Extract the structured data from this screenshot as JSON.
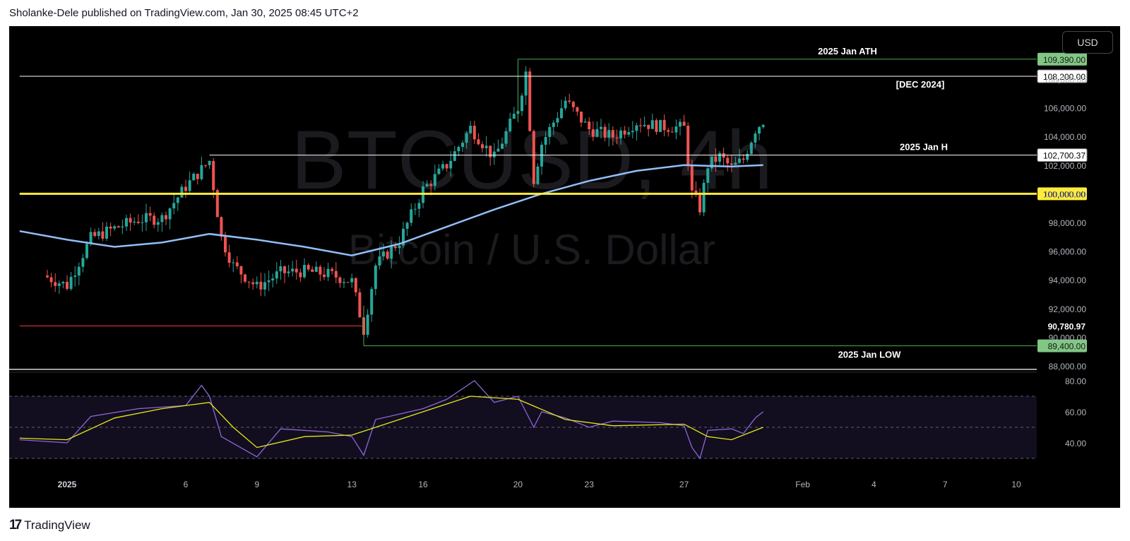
{
  "header": {
    "published": "Sholanke-Dele published on TradingView.com, Jan 30, 2025 08:45 UTC+2"
  },
  "footer": {
    "brand": "TradingView"
  },
  "toolbar": {
    "currency": "USD"
  },
  "watermark": {
    "symbol": "BTCUSD, 4h",
    "name": "Bitcoin / U.S. Dollar"
  },
  "chart_data": {
    "type": "candlestick",
    "symbol": "BTCUSD",
    "interval": "4h",
    "price_axis": {
      "ylim": [
        87400,
        110700
      ],
      "ticks": [
        "88,000.00",
        "90,000.00",
        "92,000.00",
        "94,000.00",
        "96,000.00",
        "98,000.00",
        "100,000.00",
        "102,000.00",
        "104,000.00",
        "106,000.00",
        "108,000.00"
      ]
    },
    "time_axis": {
      "ticks": [
        {
          "label": "2025",
          "date": "2025-01-01"
        },
        {
          "label": "6",
          "date": "2025-01-06"
        },
        {
          "label": "9",
          "date": "2025-01-09"
        },
        {
          "label": "13",
          "date": "2025-01-13"
        },
        {
          "label": "16",
          "date": "2025-01-16"
        },
        {
          "label": "20",
          "date": "2025-01-20"
        },
        {
          "label": "23",
          "date": "2025-01-23"
        },
        {
          "label": "27",
          "date": "2025-01-27"
        },
        {
          "label": "Feb",
          "date": "2025-02-01"
        },
        {
          "label": "4",
          "date": "2025-02-04"
        },
        {
          "label": "7",
          "date": "2025-02-07"
        },
        {
          "label": "10",
          "date": "2025-02-10"
        }
      ]
    },
    "colors": {
      "up": "#26a69a",
      "down": "#ef5350",
      "ma": "#90bff9",
      "yellow": "#ffeb3b",
      "green": "#4caf50",
      "red": "#f23645",
      "white": "#ffffff",
      "rsi": "#8e67d8",
      "rsi_ma": "#e6e619"
    },
    "price_series": [
      {
        "date": "2024-12-31",
        "price": 94300
      },
      {
        "date": "2025-01-01",
        "price": 93600
      },
      {
        "date": "2025-01-02",
        "price": 96900
      },
      {
        "date": "2025-01-03",
        "price": 97600
      },
      {
        "date": "2025-01-04",
        "price": 98200
      },
      {
        "date": "2025-01-05",
        "price": 98300
      },
      {
        "date": "2025-01-06",
        "price": 100500
      },
      {
        "date": "2025-01-07",
        "price": 102300
      },
      {
        "date": "2025-01-07T12:00",
        "price": 96900
      },
      {
        "date": "2025-01-08",
        "price": 95000
      },
      {
        "date": "2025-01-09",
        "price": 93500
      },
      {
        "date": "2025-01-10",
        "price": 94500
      },
      {
        "date": "2025-01-11",
        "price": 94600
      },
      {
        "date": "2025-01-12",
        "price": 94400
      },
      {
        "date": "2025-01-13",
        "price": 93900
      },
      {
        "date": "2025-01-13T12:00",
        "price": 90500
      },
      {
        "date": "2025-01-14",
        "price": 95000
      },
      {
        "date": "2025-01-15",
        "price": 96700
      },
      {
        "date": "2025-01-16",
        "price": 100300
      },
      {
        "date": "2025-01-17",
        "price": 102000
      },
      {
        "date": "2025-01-18",
        "price": 104600
      },
      {
        "date": "2025-01-19",
        "price": 102500
      },
      {
        "date": "2025-01-20",
        "price": 106000
      },
      {
        "date": "2025-01-20T08:00",
        "price": 108500
      },
      {
        "date": "2025-01-20T16:00",
        "price": 101000
      },
      {
        "date": "2025-01-21",
        "price": 103500
      },
      {
        "date": "2025-01-22",
        "price": 106500
      },
      {
        "date": "2025-01-23",
        "price": 104500
      },
      {
        "date": "2025-01-24",
        "price": 104000
      },
      {
        "date": "2025-01-25",
        "price": 105000
      },
      {
        "date": "2025-01-26",
        "price": 104700
      },
      {
        "date": "2025-01-27",
        "price": 104600
      },
      {
        "date": "2025-01-27T08:00",
        "price": 100000
      },
      {
        "date": "2025-01-27T16:00",
        "price": 99000
      },
      {
        "date": "2025-01-28",
        "price": 102000
      },
      {
        "date": "2025-01-28T12:00",
        "price": 102600
      },
      {
        "date": "2025-01-29",
        "price": 101800
      },
      {
        "date": "2025-01-29T12:00",
        "price": 102400
      },
      {
        "date": "2025-01-30",
        "price": 104500
      },
      {
        "date": "2025-01-30T08:00",
        "price": 105100
      }
    ],
    "moving_average": [
      {
        "date": "2024-12-30",
        "price": 97400
      },
      {
        "date": "2025-01-01",
        "price": 96800
      },
      {
        "date": "2025-01-03",
        "price": 96300
      },
      {
        "date": "2025-01-05",
        "price": 96600
      },
      {
        "date": "2025-01-07",
        "price": 97200
      },
      {
        "date": "2025-01-09",
        "price": 96800
      },
      {
        "date": "2025-01-11",
        "price": 96300
      },
      {
        "date": "2025-01-13",
        "price": 95700
      },
      {
        "date": "2025-01-15",
        "price": 96500
      },
      {
        "date": "2025-01-17",
        "price": 97700
      },
      {
        "date": "2025-01-19",
        "price": 98900
      },
      {
        "date": "2025-01-21",
        "price": 100000
      },
      {
        "date": "2025-01-23",
        "price": 100900
      },
      {
        "date": "2025-01-25",
        "price": 101600
      },
      {
        "date": "2025-01-27",
        "price": 102000
      },
      {
        "date": "2025-01-29",
        "price": 101900
      },
      {
        "date": "2025-01-30T08:00",
        "price": 102000
      }
    ],
    "levels": [
      {
        "label": "2025 Jan ATH",
        "price": 109390,
        "value_label": "109,390.00",
        "color": "green",
        "start_date": "2025-01-20"
      },
      {
        "label": "[DEC 2024]",
        "price": 108200,
        "value_label": "108,200.00",
        "color": "white",
        "start_date": "2024-12-30"
      },
      {
        "label": "2025 Jan H",
        "price": 102700.37,
        "value_label": "102,700.37",
        "color": "white",
        "start_date": "2025-01-07"
      },
      {
        "label": "",
        "price": 100000,
        "value_label": "100,000.00",
        "color": "yellow",
        "start_date": "2024-12-30"
      },
      {
        "label": "",
        "price": 90780.97,
        "value_label": "90,780.97",
        "color": "red",
        "start_date": "2024-12-30",
        "end_date": "2025-01-13T12:00"
      },
      {
        "label": "2025 Jan LOW",
        "price": 89400,
        "value_label": "89,400.00",
        "color": "green",
        "start_date": "2025-01-13T12:00"
      }
    ],
    "rsi": {
      "ylim": [
        27,
        84
      ],
      "ticks": [
        "80.00",
        "60.00",
        "40.00"
      ],
      "bands": [
        70,
        50,
        30
      ],
      "series": [
        {
          "date": "2024-12-30",
          "value": 42
        },
        {
          "date": "2025-01-01",
          "value": 40
        },
        {
          "date": "2025-01-02",
          "value": 57
        },
        {
          "date": "2025-01-04",
          "value": 62
        },
        {
          "date": "2025-01-06",
          "value": 64
        },
        {
          "date": "2025-01-06T16:00",
          "value": 77
        },
        {
          "date": "2025-01-07",
          "value": 70
        },
        {
          "date": "2025-01-07T12:00",
          "value": 44
        },
        {
          "date": "2025-01-09",
          "value": 31
        },
        {
          "date": "2025-01-10",
          "value": 49
        },
        {
          "date": "2025-01-12",
          "value": 47
        },
        {
          "date": "2025-01-13",
          "value": 44
        },
        {
          "date": "2025-01-13T12:00",
          "value": 32
        },
        {
          "date": "2025-01-14",
          "value": 55
        },
        {
          "date": "2025-01-16",
          "value": 62
        },
        {
          "date": "2025-01-17",
          "value": 68
        },
        {
          "date": "2025-01-18T04:00",
          "value": 80
        },
        {
          "date": "2025-01-19",
          "value": 66
        },
        {
          "date": "2025-01-20",
          "value": 70
        },
        {
          "date": "2025-01-20T16:00",
          "value": 50
        },
        {
          "date": "2025-01-21",
          "value": 60
        },
        {
          "date": "2025-01-22",
          "value": 56
        },
        {
          "date": "2025-01-23",
          "value": 50
        },
        {
          "date": "2025-01-24",
          "value": 54
        },
        {
          "date": "2025-01-26",
          "value": 53
        },
        {
          "date": "2025-01-27",
          "value": 51
        },
        {
          "date": "2025-01-27T08:00",
          "value": 37
        },
        {
          "date": "2025-01-27T16:00",
          "value": 30
        },
        {
          "date": "2025-01-28",
          "value": 48
        },
        {
          "date": "2025-01-29",
          "value": 49
        },
        {
          "date": "2025-01-29T12:00",
          "value": 46
        },
        {
          "date": "2025-01-30",
          "value": 56
        },
        {
          "date": "2025-01-30T08:00",
          "value": 60
        }
      ],
      "ma": [
        {
          "date": "2024-12-30",
          "value": 43
        },
        {
          "date": "2025-01-01",
          "value": 42
        },
        {
          "date": "2025-01-03",
          "value": 56
        },
        {
          "date": "2025-01-05",
          "value": 62
        },
        {
          "date": "2025-01-07",
          "value": 66
        },
        {
          "date": "2025-01-08",
          "value": 50
        },
        {
          "date": "2025-01-09",
          "value": 37
        },
        {
          "date": "2025-01-11",
          "value": 44
        },
        {
          "date": "2025-01-13",
          "value": 45
        },
        {
          "date": "2025-01-15",
          "value": 55
        },
        {
          "date": "2025-01-17",
          "value": 65
        },
        {
          "date": "2025-01-18",
          "value": 70
        },
        {
          "date": "2025-01-20",
          "value": 68
        },
        {
          "date": "2025-01-22",
          "value": 55
        },
        {
          "date": "2025-01-24",
          "value": 51
        },
        {
          "date": "2025-01-27",
          "value": 52
        },
        {
          "date": "2025-01-28",
          "value": 44
        },
        {
          "date": "2025-01-29",
          "value": 42
        },
        {
          "date": "2025-01-30T08:00",
          "value": 50
        }
      ]
    }
  }
}
